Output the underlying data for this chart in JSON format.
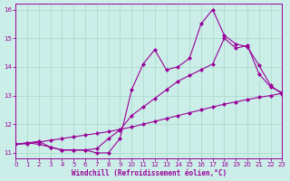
{
  "line1_x": [
    0,
    1,
    2,
    3,
    4,
    5,
    6,
    7,
    8,
    9,
    10,
    11,
    12,
    13,
    14,
    15,
    16,
    17,
    18,
    19,
    20,
    21,
    22,
    23
  ],
  "line1_y": [
    11.3,
    11.35,
    11.3,
    11.2,
    11.1,
    11.1,
    11.1,
    11.0,
    11.0,
    11.5,
    13.2,
    14.1,
    14.6,
    13.9,
    14.0,
    14.3,
    15.5,
    16.0,
    15.1,
    14.8,
    14.7,
    14.05,
    13.35,
    13.05
  ],
  "line2_x": [
    0,
    1,
    2,
    3,
    4,
    5,
    6,
    7,
    8,
    9,
    10,
    11,
    12,
    13,
    14,
    15,
    16,
    17,
    18,
    19,
    20,
    21,
    22,
    23
  ],
  "line2_y": [
    11.3,
    11.35,
    11.4,
    11.2,
    11.1,
    11.1,
    11.1,
    11.15,
    11.5,
    11.8,
    12.3,
    12.6,
    12.9,
    13.2,
    13.5,
    13.7,
    13.9,
    14.1,
    15.0,
    14.65,
    14.75,
    13.75,
    13.3,
    13.1
  ],
  "line3_x": [
    0,
    1,
    2,
    3,
    4,
    5,
    6,
    7,
    8,
    9,
    10,
    11,
    12,
    13,
    14,
    15,
    16,
    17,
    18,
    19,
    20,
    21,
    22,
    23
  ],
  "line3_y": [
    11.3,
    11.32,
    11.38,
    11.44,
    11.5,
    11.56,
    11.62,
    11.68,
    11.74,
    11.82,
    11.9,
    12.0,
    12.1,
    12.2,
    12.3,
    12.4,
    12.5,
    12.6,
    12.7,
    12.78,
    12.86,
    12.94,
    13.0,
    13.08
  ],
  "color": "#990099",
  "bg_color": "#cceee8",
  "grid_color": "#aaddcc",
  "xlabel": "Windchill (Refroidissement éolien,°C)",
  "xlim": [
    0,
    23
  ],
  "ylim": [
    10.8,
    16.2
  ],
  "yticks": [
    11,
    12,
    13,
    14,
    15,
    16
  ],
  "xticks": [
    0,
    1,
    2,
    3,
    4,
    5,
    6,
    7,
    8,
    9,
    10,
    11,
    12,
    13,
    14,
    15,
    16,
    17,
    18,
    19,
    20,
    21,
    22,
    23
  ],
  "marker": "D",
  "markersize": 2.5,
  "linewidth": 0.8
}
